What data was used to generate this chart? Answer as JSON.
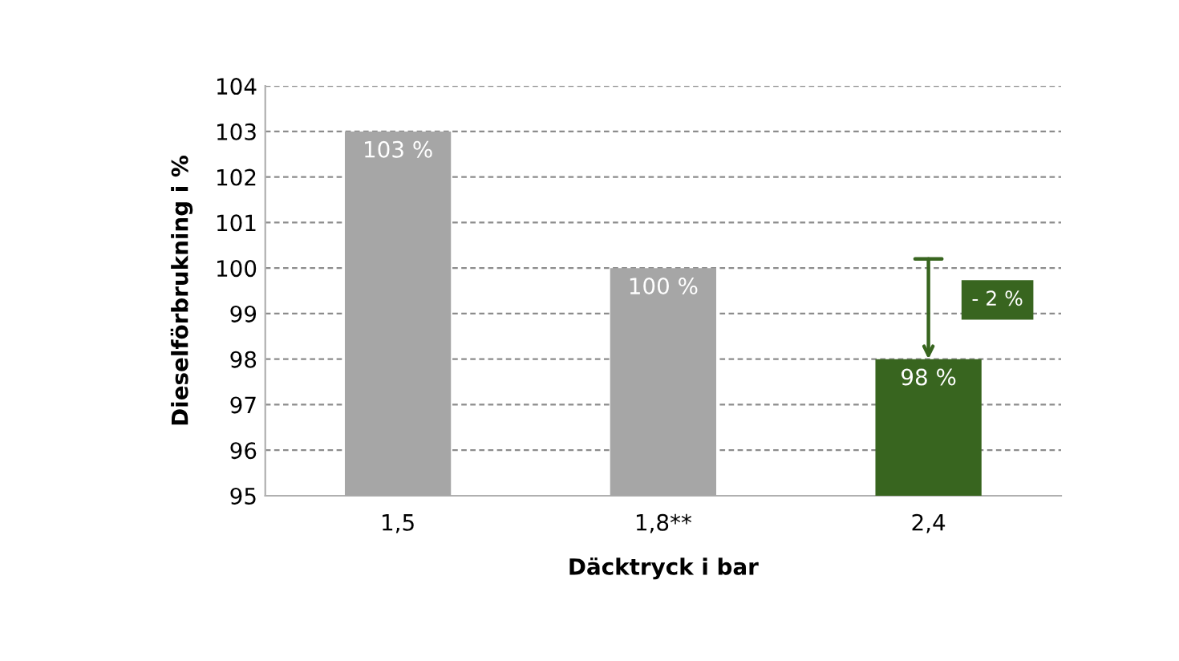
{
  "chart_data": {
    "type": "bar",
    "xlabel": "Däcktryck i bar",
    "ylabel": "Dieselförbrukning i %",
    "categories": [
      "1,5",
      "1,8**",
      "2,4"
    ],
    "values": [
      103,
      100,
      98
    ],
    "colors": [
      "#a6a6a6",
      "#a6a6a6",
      "#38651f"
    ],
    "value_labels": [
      "103 %",
      "100 %",
      "98 %"
    ],
    "ylim": [
      95,
      104
    ],
    "yticks": [
      95,
      96,
      97,
      98,
      99,
      100,
      101,
      102,
      103,
      104
    ],
    "grid": "y",
    "annotations": [
      "- 2 %"
    ]
  }
}
